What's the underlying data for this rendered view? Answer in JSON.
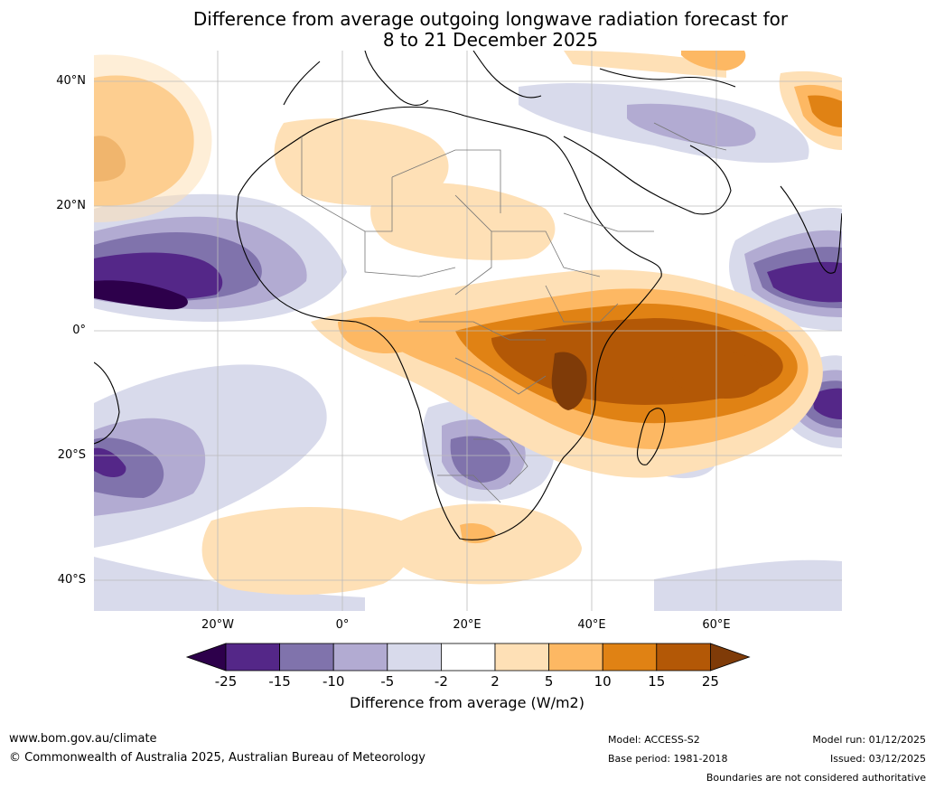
{
  "title_line1": "Difference from average outgoing longwave radiation forecast for",
  "title_line2": "8 to 21 December 2025",
  "lat_labels": [
    "40°N",
    "20°N",
    "0°",
    "20°S",
    "40°S"
  ],
  "lon_labels": [
    "20°W",
    "0°",
    "20°E",
    "40°E",
    "60°E"
  ],
  "colorbar": {
    "ticks": [
      "-25",
      "-15",
      "-10",
      "-5",
      "-2",
      "2",
      "5",
      "10",
      "15",
      "25"
    ],
    "colors": [
      "#2d004b",
      "#542788",
      "#8073ac",
      "#b2abd2",
      "#d8daeb",
      "#ffffff",
      "#fee0b6",
      "#fdb863",
      "#e08214",
      "#b35806",
      "#7f3b08"
    ],
    "title": "Difference from average (W/m2)"
  },
  "footer": {
    "website": "www.bom.gov.au/climate",
    "copyright": "© Commonwealth of Australia 2025, Australian Bureau of Meteorology",
    "model": "Model: ACCESS-S2",
    "base_period": "Base period: 1981-2018",
    "model_run": "Model run: 01/12/2025",
    "issued": "Issued: 03/12/2025",
    "disclaimer": "Boundaries are not considered authoritative"
  }
}
